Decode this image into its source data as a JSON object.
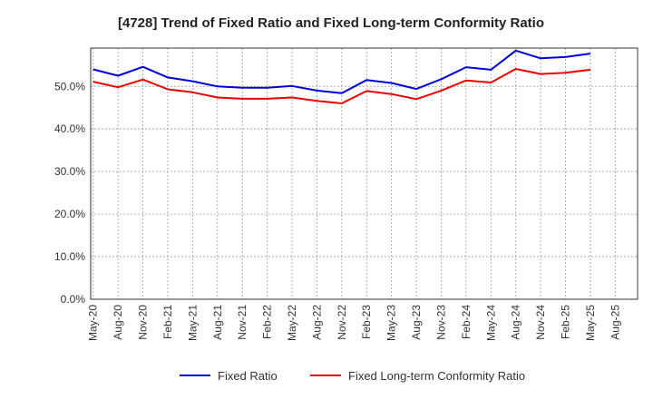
{
  "chart_data": {
    "type": "line",
    "title": "[4728]  Trend of Fixed Ratio and Fixed Long-term Conformity Ratio",
    "xlabel": "",
    "ylabel": "",
    "ylim": [
      0,
      59
    ],
    "y_ticks": [
      "0.0%",
      "10.0%",
      "20.0%",
      "30.0%",
      "40.0%",
      "50.0%"
    ],
    "y_tick_values": [
      0,
      10,
      20,
      30,
      40,
      50
    ],
    "x_tick_labels": [
      "May-20",
      "Aug-20",
      "Nov-20",
      "Feb-21",
      "May-21",
      "Aug-21",
      "Nov-21",
      "Feb-22",
      "May-22",
      "Aug-22",
      "Nov-22",
      "Feb-23",
      "May-23",
      "Aug-23",
      "Nov-23",
      "Feb-24",
      "May-24",
      "Aug-24",
      "Nov-24",
      "Feb-25",
      "May-25",
      "Aug-25"
    ],
    "x": [
      "May-20",
      "Aug-20",
      "Nov-20",
      "Feb-21",
      "May-21",
      "Aug-21",
      "Nov-21",
      "Feb-22",
      "May-22",
      "Aug-22",
      "Nov-22",
      "Feb-23",
      "May-23",
      "Aug-23",
      "Nov-23",
      "Feb-24",
      "May-24",
      "Aug-24",
      "Nov-24",
      "Feb-25",
      "May-25"
    ],
    "grid": true,
    "legend_position": "bottom",
    "series": [
      {
        "name": "Fixed Ratio",
        "color": "#0000dd",
        "values": [
          54.0,
          52.5,
          54.6,
          52.1,
          51.2,
          50.0,
          49.7,
          49.7,
          50.1,
          49.0,
          48.4,
          51.5,
          50.8,
          49.4,
          51.7,
          54.5,
          53.9,
          58.4,
          56.6,
          56.9,
          57.7
        ]
      },
      {
        "name": "Fixed Long-term Conformity Ratio",
        "color": "#ee0000",
        "values": [
          51.1,
          49.8,
          51.6,
          49.3,
          48.6,
          47.4,
          47.1,
          47.1,
          47.4,
          46.6,
          46.0,
          48.9,
          48.2,
          47.0,
          49.0,
          51.4,
          50.9,
          54.1,
          52.9,
          53.2,
          53.9
        ]
      }
    ]
  }
}
